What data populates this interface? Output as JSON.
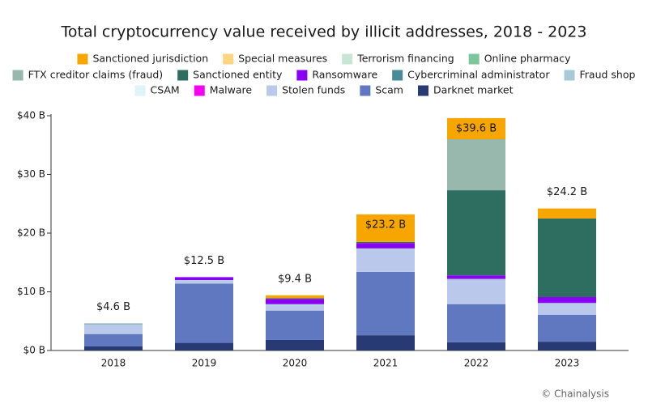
{
  "chart_data": {
    "type": "stacked_bar",
    "title": "Total cryptocurrency value received by illicit addresses, 2018 - 2023",
    "source": "© Chainalysis",
    "categories": [
      "2018",
      "2019",
      "2020",
      "2021",
      "2022",
      "2023"
    ],
    "ylim": [
      0,
      40
    ],
    "yticks": [
      {
        "value": 0,
        "label": "$0 B"
      },
      {
        "value": 10,
        "label": "$10 B"
      },
      {
        "value": 20,
        "label": "$20 B"
      },
      {
        "value": 30,
        "label": "$30 B"
      },
      {
        "value": 40,
        "label": "$40 B"
      }
    ],
    "series": [
      {
        "name": "Sanctioned jurisdiction",
        "color": "#f7a600",
        "values": [
          0,
          0,
          0.5,
          4.7,
          3.6,
          1.7
        ]
      },
      {
        "name": "Special measures",
        "color": "#fcd581",
        "values": [
          0,
          0,
          0,
          0,
          0,
          0
        ]
      },
      {
        "name": "Terrorism financing",
        "color": "#c8e6d5",
        "values": [
          0,
          0,
          0,
          0,
          0,
          0
        ]
      },
      {
        "name": "Online pharmacy",
        "color": "#7dc59b",
        "values": [
          0,
          0,
          0,
          0,
          0,
          0
        ]
      },
      {
        "name": "FTX creditor claims (fraud)",
        "color": "#98b8ad",
        "values": [
          0,
          0,
          0,
          0,
          8.7,
          0
        ]
      },
      {
        "name": "Sanctioned entity",
        "color": "#2e6e61",
        "values": [
          0,
          0,
          0.1,
          0.2,
          14.5,
          13.4
        ]
      },
      {
        "name": "Ransomware",
        "color": "#8a00f5",
        "values": [
          0,
          0.5,
          0.9,
          0.9,
          0.6,
          1.0
        ]
      },
      {
        "name": "Cybercriminal administrator",
        "color": "#4a8b9a",
        "values": [
          0.1,
          0,
          0,
          0,
          0,
          0
        ]
      },
      {
        "name": "Fraud shop",
        "color": "#a9c9d6",
        "values": [
          0.2,
          0.1,
          0.2,
          0.2,
          0.2,
          0.1
        ]
      },
      {
        "name": "CSAM",
        "color": "#e2f2fb",
        "values": [
          0,
          0,
          0,
          0,
          0,
          0
        ]
      },
      {
        "name": "Malware",
        "color": "#f500f0",
        "values": [
          0,
          0,
          0,
          0,
          0,
          0
        ]
      },
      {
        "name": "Stolen funds",
        "color": "#bac8ec",
        "values": [
          1.5,
          0.5,
          0.9,
          3.8,
          4.1,
          1.9
        ]
      },
      {
        "name": "Scam",
        "color": "#5f78c0",
        "values": [
          2.1,
          10.1,
          5.0,
          10.8,
          6.5,
          4.6
        ]
      },
      {
        "name": "Darknet market",
        "color": "#283a73",
        "values": [
          0.7,
          1.3,
          1.8,
          2.6,
          1.4,
          1.5
        ]
      }
    ],
    "totals": {
      "values": [
        4.6,
        12.5,
        9.4,
        23.2,
        39.6,
        24.2
      ],
      "value_labels": [
        "$4.6 B",
        "$12.5 B",
        "$9.4 B",
        "$23.2 B",
        "$39.6 B",
        "$24.2 B"
      ]
    }
  }
}
